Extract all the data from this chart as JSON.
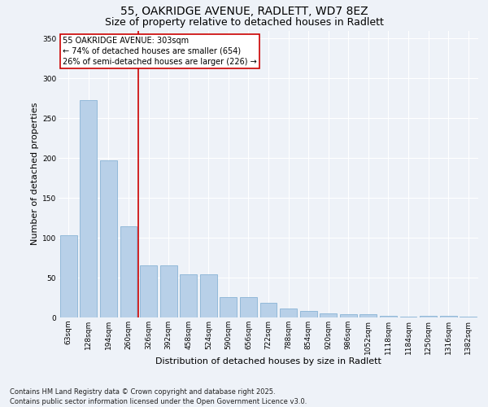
{
  "title_line1": "55, OAKRIDGE AVENUE, RADLETT, WD7 8EZ",
  "title_line2": "Size of property relative to detached houses in Radlett",
  "xlabel": "Distribution of detached houses by size in Radlett",
  "ylabel": "Number of detached properties",
  "categories": [
    "63sqm",
    "128sqm",
    "194sqm",
    "260sqm",
    "326sqm",
    "392sqm",
    "458sqm",
    "524sqm",
    "590sqm",
    "656sqm",
    "722sqm",
    "788sqm",
    "854sqm",
    "920sqm",
    "986sqm",
    "1052sqm",
    "1118sqm",
    "1184sqm",
    "1250sqm",
    "1316sqm",
    "1382sqm"
  ],
  "values": [
    103,
    273,
    197,
    114,
    65,
    65,
    54,
    54,
    26,
    26,
    18,
    11,
    8,
    5,
    4,
    4,
    2,
    1,
    2,
    2,
    1
  ],
  "bar_color": "#b8d0e8",
  "bar_edge_color": "#7aaad0",
  "bar_width": 0.85,
  "vline_x": 3.5,
  "vline_color": "#cc0000",
  "annotation_text": "55 OAKRIDGE AVENUE: 303sqm\n← 74% of detached houses are smaller (654)\n26% of semi-detached houses are larger (226) →",
  "annotation_box_color": "#cc0000",
  "ylim": [
    0,
    360
  ],
  "yticks": [
    0,
    50,
    100,
    150,
    200,
    250,
    300,
    350
  ],
  "background_color": "#eef2f8",
  "grid_color": "#ffffff",
  "footer": "Contains HM Land Registry data © Crown copyright and database right 2025.\nContains public sector information licensed under the Open Government Licence v3.0.",
  "title_fontsize": 10,
  "subtitle_fontsize": 9,
  "axis_label_fontsize": 8,
  "tick_fontsize": 6.5,
  "annotation_fontsize": 7,
  "footer_fontsize": 6
}
